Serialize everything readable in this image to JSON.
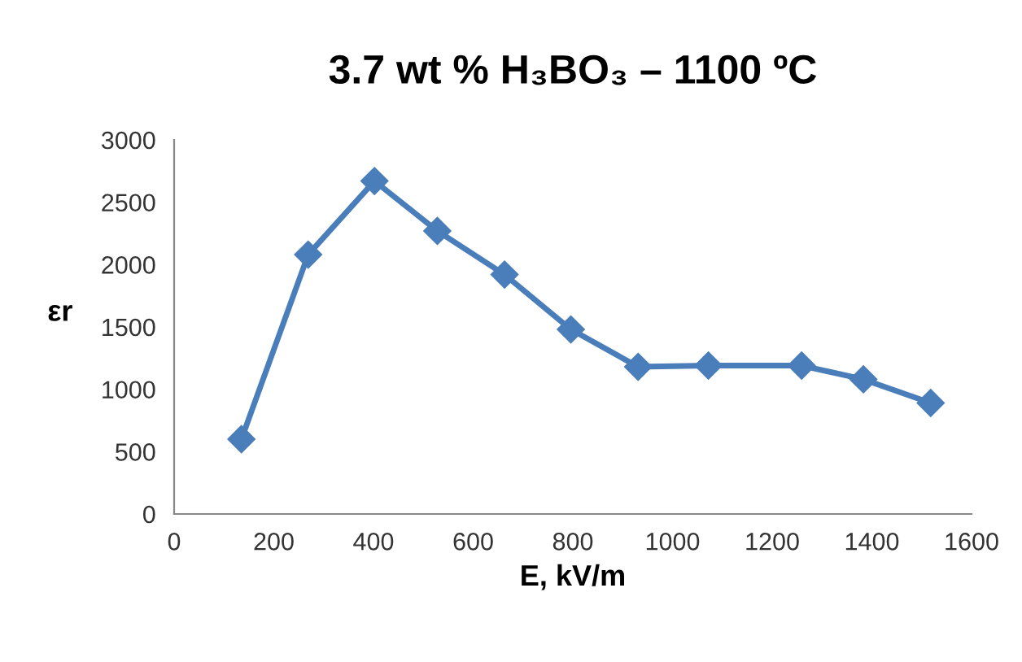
{
  "chart_data": {
    "type": "line",
    "title": "3.7 wt % H₃BO₃ – 1100 ºC",
    "xlabel": "E, kV/m",
    "ylabel": "εr",
    "x": [
      135,
      269,
      402,
      528,
      663,
      796,
      931,
      1072,
      1259,
      1383,
      1518
    ],
    "series": [
      {
        "color": "#4a7ebb",
        "values": [
          600,
          2080,
          2670,
          2270,
          1920,
          1480,
          1180,
          1190,
          1190,
          1080,
          890
        ]
      }
    ],
    "xlim": [
      0,
      1600
    ],
    "xticks": [
      0,
      200,
      400,
      600,
      800,
      1000,
      1200,
      1400,
      1600
    ],
    "ylim": [
      0,
      3000
    ],
    "yticks": [
      0,
      500,
      1000,
      1500,
      2000,
      2500,
      3000
    ],
    "grid": false,
    "legend": false,
    "marker": "diamond",
    "line_style": "solid"
  }
}
